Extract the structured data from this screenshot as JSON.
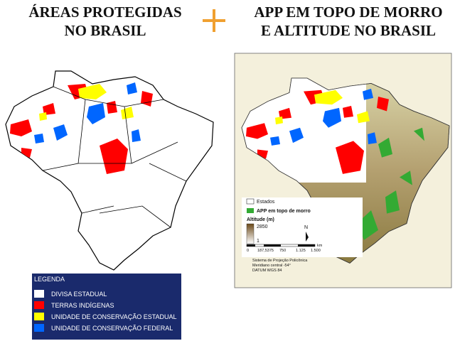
{
  "left_title": [
    "ÁREAS PROTEGIDAS",
    "NO BRASIL"
  ],
  "right_title": [
    "APP EM TOPO DE MORRO",
    "E ALTITUDE NO BRASIL"
  ],
  "legend": {
    "title": "LEGENDA",
    "items": [
      {
        "label": "DIVISA ESTADUAL",
        "color": "#ffffff"
      },
      {
        "label": "TERRAS INDÍGENAS",
        "color": "#ff0000"
      },
      {
        "label": "UNIDADE DE CONSERVAÇÃO ESTADUAL",
        "color": "#ffff00"
      },
      {
        "label": "UNIDADE DE CONSERVAÇÃO FEDERAL",
        "color": "#0066ff"
      }
    ]
  },
  "map_legend": {
    "states": "Estados",
    "app": "APP em topo de morro",
    "app_color": "#33aa33",
    "altitude_title": "Altitude (m)",
    "altitude_max": "2850",
    "altitude_min": "1",
    "north": "N",
    "scale_labels": [
      "0",
      "187,5375",
      "750",
      "1.125",
      "1.500"
    ],
    "scale_unit": "km",
    "projection": [
      "Sistema de Projeção Policônica",
      "Meridiano central -54°",
      "DATUM WGS 84"
    ]
  }
}
